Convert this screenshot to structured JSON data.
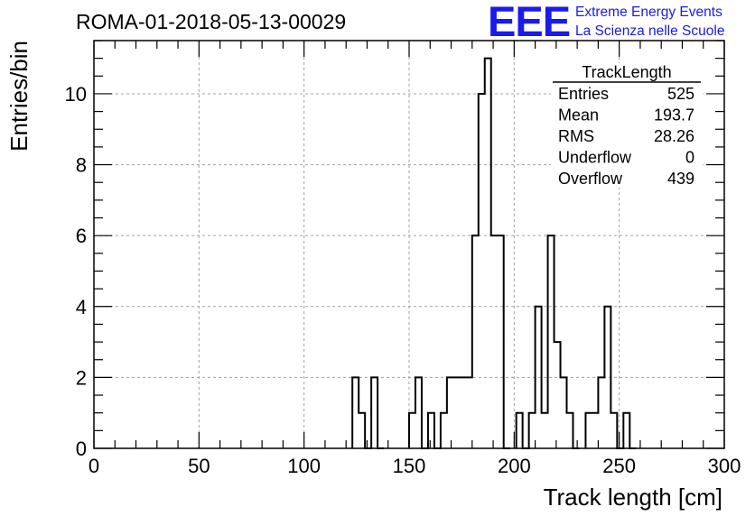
{
  "header": {
    "run_title": "ROMA-01-2018-05-13-00029",
    "logo_mark": "EEE",
    "logo_line1": "Extreme Energy Events",
    "logo_line2": "La Scienza nelle Scuole",
    "logo_color": "#1a1aee"
  },
  "stats_box": {
    "title": "TrackLength",
    "rows": [
      {
        "label": "Entries",
        "value": "525"
      },
      {
        "label": "Mean",
        "value": "193.7"
      },
      {
        "label": "RMS",
        "value": "28.26"
      },
      {
        "label": "Underflow",
        "value": "0"
      },
      {
        "label": "Overflow",
        "value": "439"
      }
    ]
  },
  "chart_data": {
    "type": "histogram",
    "title": "ROMA-01-2018-05-13-00029",
    "xlabel": "Track length [cm]",
    "ylabel": "Entries/bin",
    "xlim": [
      0,
      300
    ],
    "ylim": [
      0,
      11.5
    ],
    "bin_width": 3,
    "x_ticks": [
      0,
      50,
      100,
      150,
      200,
      250,
      300
    ],
    "y_ticks": [
      0,
      2,
      4,
      6,
      8,
      10
    ],
    "grid": true,
    "line_color": "#000000",
    "bins": [
      {
        "x0": 123,
        "count": 2
      },
      {
        "x0": 126,
        "count": 1
      },
      {
        "x0": 129,
        "count": 0
      },
      {
        "x0": 132,
        "count": 2
      },
      {
        "x0": 135,
        "count": 0
      },
      {
        "x0": 150,
        "count": 1
      },
      {
        "x0": 153,
        "count": 2
      },
      {
        "x0": 156,
        "count": 0
      },
      {
        "x0": 159,
        "count": 1
      },
      {
        "x0": 162,
        "count": 0
      },
      {
        "x0": 165,
        "count": 1
      },
      {
        "x0": 168,
        "count": 2
      },
      {
        "x0": 171,
        "count": 2
      },
      {
        "x0": 174,
        "count": 2
      },
      {
        "x0": 177,
        "count": 2
      },
      {
        "x0": 180,
        "count": 6
      },
      {
        "x0": 183,
        "count": 10
      },
      {
        "x0": 186,
        "count": 11
      },
      {
        "x0": 189,
        "count": 6
      },
      {
        "x0": 192,
        "count": 6
      },
      {
        "x0": 195,
        "count": 0
      },
      {
        "x0": 201,
        "count": 1
      },
      {
        "x0": 204,
        "count": 0
      },
      {
        "x0": 207,
        "count": 1
      },
      {
        "x0": 210,
        "count": 4
      },
      {
        "x0": 213,
        "count": 1
      },
      {
        "x0": 216,
        "count": 6
      },
      {
        "x0": 219,
        "count": 3
      },
      {
        "x0": 222,
        "count": 2
      },
      {
        "x0": 225,
        "count": 1
      },
      {
        "x0": 228,
        "count": 0
      },
      {
        "x0": 234,
        "count": 1
      },
      {
        "x0": 237,
        "count": 1
      },
      {
        "x0": 240,
        "count": 2
      },
      {
        "x0": 243,
        "count": 4
      },
      {
        "x0": 246,
        "count": 1
      },
      {
        "x0": 249,
        "count": 0
      },
      {
        "x0": 252,
        "count": 1
      },
      {
        "x0": 255,
        "count": 0
      }
    ]
  }
}
